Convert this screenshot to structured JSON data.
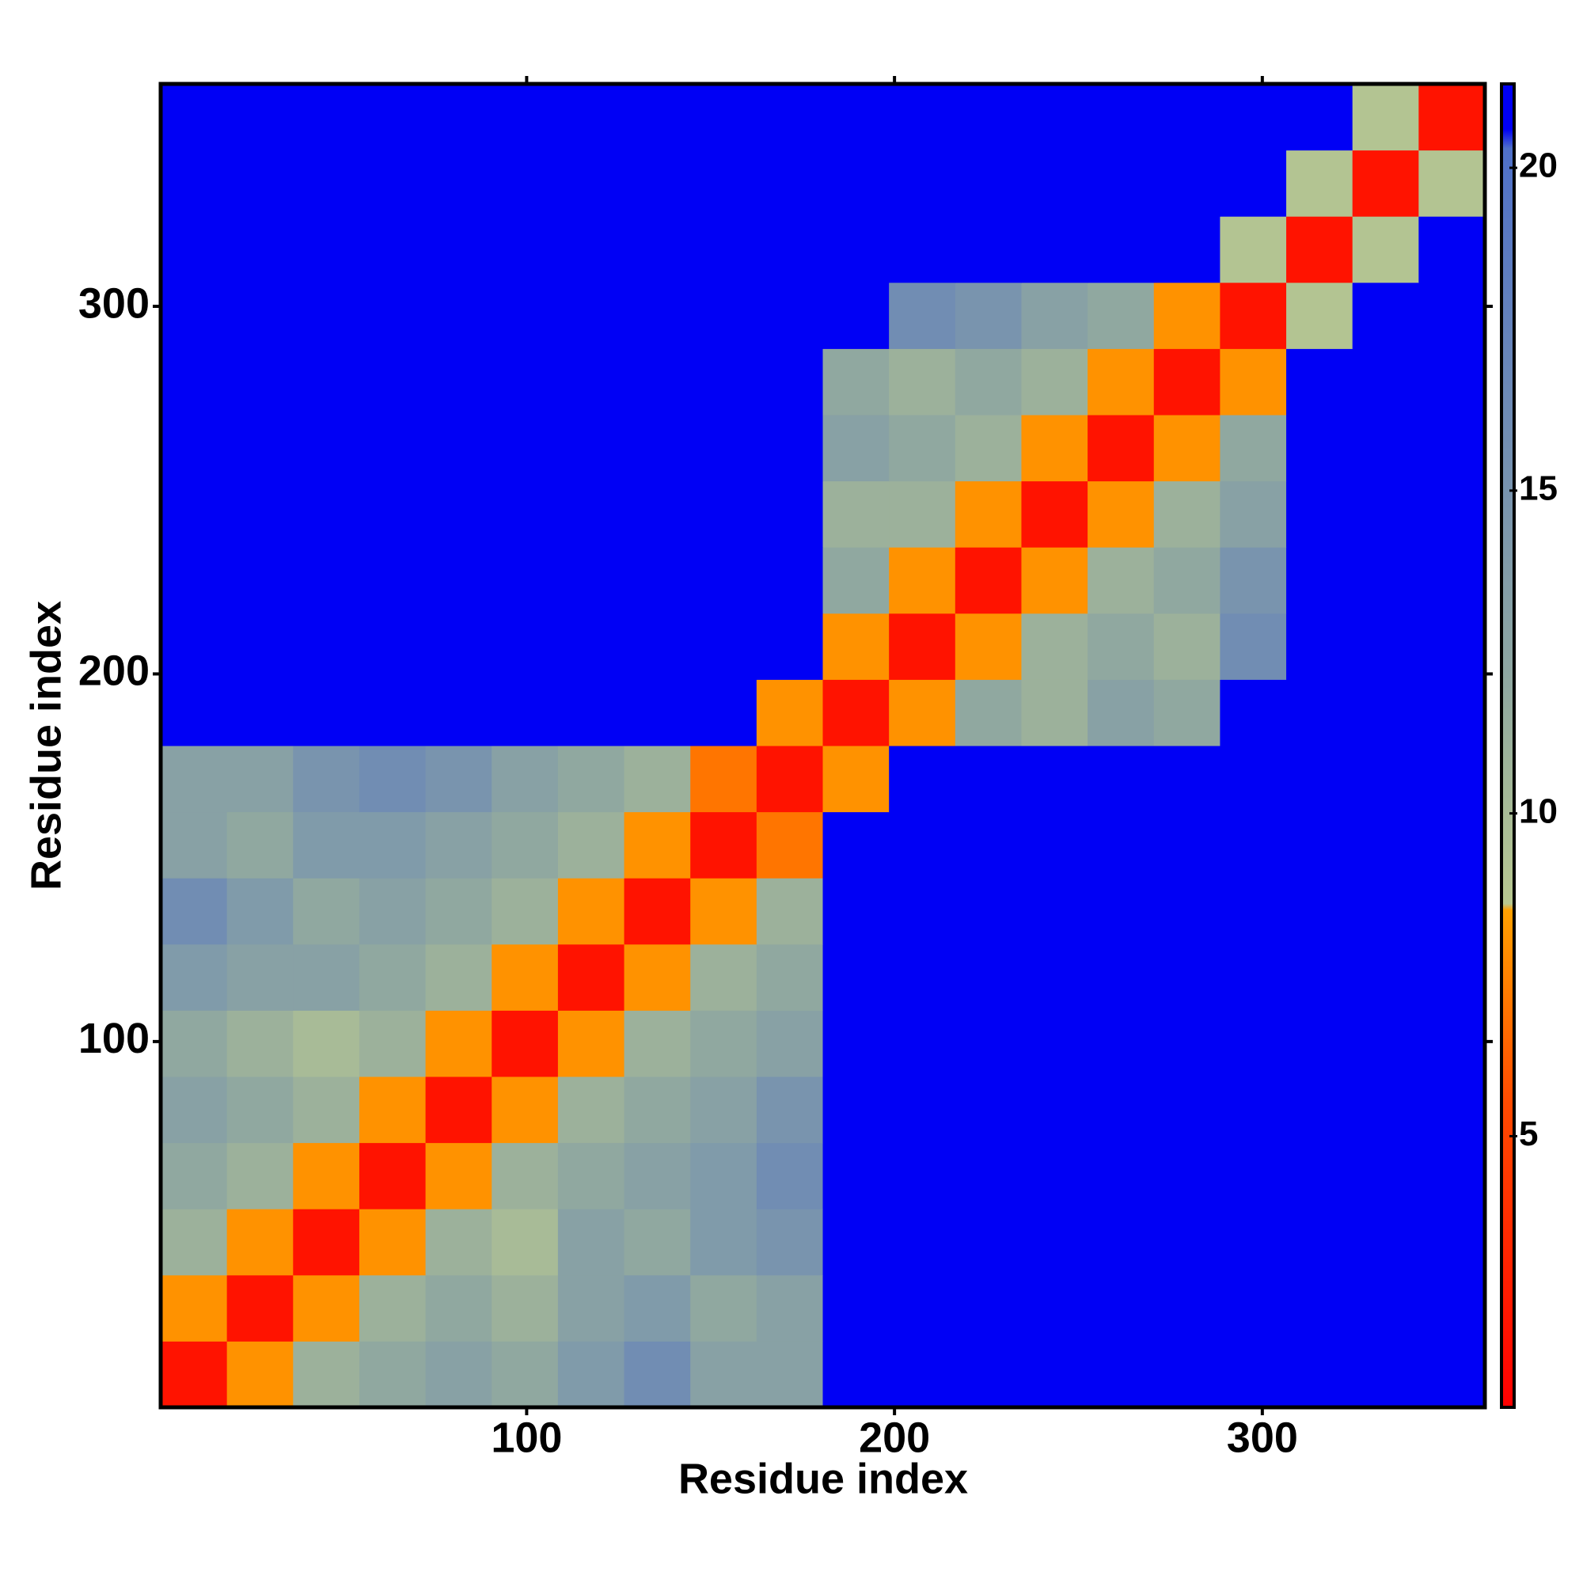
{
  "chart_data": {
    "type": "heatmap",
    "xlabel": "Residue index",
    "ylabel": "Residue index",
    "xlim": [
      0.5,
      360.5
    ],
    "ylim": [
      0.5,
      360.5
    ],
    "xticks": [
      100,
      200,
      300
    ],
    "yticks": [
      100,
      200,
      300
    ],
    "x_bins": [
      0.5,
      18.5,
      36.5,
      54.5,
      72.5,
      90.5,
      108.5,
      126.5,
      144.5,
      162.5,
      180.5,
      198.5,
      216.5,
      234.5,
      252.5,
      270.5,
      288.5,
      306.5,
      324.5,
      342.5,
      360.5
    ],
    "y_bins": [
      0.5,
      18.5,
      36.5,
      54.5,
      72.5,
      90.5,
      108.5,
      126.5,
      144.5,
      162.5,
      180.5,
      198.5,
      216.5,
      234.5,
      252.5,
      270.5,
      288.5,
      306.5,
      324.5,
      342.5,
      360.5
    ],
    "z": [
      [
        2,
        8,
        11,
        12,
        13,
        12,
        14,
        16,
        13,
        13,
        21,
        21,
        21,
        21,
        21,
        21,
        21,
        21,
        21,
        21
      ],
      [
        8,
        2,
        8,
        11,
        12,
        11,
        13,
        14,
        12,
        13,
        21,
        21,
        21,
        21,
        21,
        21,
        21,
        21,
        21,
        21
      ],
      [
        11,
        8,
        2,
        8,
        11,
        10,
        13,
        12,
        14,
        15,
        21,
        21,
        21,
        21,
        21,
        21,
        21,
        21,
        21,
        21
      ],
      [
        12,
        11,
        8,
        2,
        8,
        11,
        12,
        13,
        14,
        16,
        21,
        21,
        21,
        21,
        21,
        21,
        21,
        21,
        21,
        21
      ],
      [
        13,
        12,
        11,
        8,
        2,
        8,
        11,
        12,
        13,
        15,
        21,
        21,
        21,
        21,
        21,
        21,
        21,
        21,
        21,
        21
      ],
      [
        12,
        11,
        10,
        11,
        8,
        2,
        8,
        11,
        12,
        13,
        21,
        21,
        21,
        21,
        21,
        21,
        21,
        21,
        21,
        21
      ],
      [
        14,
        13,
        13,
        12,
        11,
        8,
        2,
        8,
        11,
        12,
        21,
        21,
        21,
        21,
        21,
        21,
        21,
        21,
        21,
        21
      ],
      [
        16,
        14,
        12,
        13,
        12,
        11,
        8,
        2,
        8,
        11,
        21,
        21,
        21,
        21,
        21,
        21,
        21,
        21,
        21,
        21
      ],
      [
        13,
        12,
        14,
        14,
        13,
        12,
        11,
        8,
        2,
        7,
        21,
        21,
        21,
        21,
        21,
        21,
        21,
        21,
        21,
        21
      ],
      [
        13,
        13,
        15,
        16,
        15,
        13,
        12,
        11,
        7,
        2,
        8,
        21,
        21,
        21,
        21,
        21,
        21,
        21,
        21,
        21
      ],
      [
        21,
        21,
        21,
        21,
        21,
        21,
        21,
        21,
        21,
        8,
        2,
        8,
        12,
        11,
        13,
        12,
        21,
        21,
        21,
        21
      ],
      [
        21,
        21,
        21,
        21,
        21,
        21,
        21,
        21,
        21,
        21,
        8,
        2,
        8,
        11,
        12,
        11,
        16,
        21,
        21,
        21
      ],
      [
        21,
        21,
        21,
        21,
        21,
        21,
        21,
        21,
        21,
        21,
        12,
        8,
        2,
        8,
        11,
        12,
        15,
        21,
        21,
        21
      ],
      [
        21,
        21,
        21,
        21,
        21,
        21,
        21,
        21,
        21,
        21,
        11,
        11,
        8,
        2,
        8,
        11,
        13,
        21,
        21,
        21
      ],
      [
        21,
        21,
        21,
        21,
        21,
        21,
        21,
        21,
        21,
        21,
        13,
        12,
        11,
        8,
        2,
        8,
        12,
        21,
        21,
        21
      ],
      [
        21,
        21,
        21,
        21,
        21,
        21,
        21,
        21,
        21,
        21,
        12,
        11,
        12,
        11,
        8,
        2,
        8,
        21,
        21,
        21
      ],
      [
        21,
        21,
        21,
        21,
        21,
        21,
        21,
        21,
        21,
        21,
        21,
        16,
        15,
        13,
        12,
        8,
        2,
        9,
        21,
        21
      ],
      [
        21,
        21,
        21,
        21,
        21,
        21,
        21,
        21,
        21,
        21,
        21,
        21,
        21,
        21,
        21,
        21,
        9,
        2,
        9,
        21
      ],
      [
        21,
        21,
        21,
        21,
        21,
        21,
        21,
        21,
        21,
        21,
        21,
        21,
        21,
        21,
        21,
        21,
        21,
        9,
        2,
        9
      ],
      [
        21,
        21,
        21,
        21,
        21,
        21,
        21,
        21,
        21,
        21,
        21,
        21,
        21,
        21,
        21,
        21,
        21,
        21,
        9,
        2
      ]
    ],
    "zlim": [
      0.8,
      21.3
    ],
    "zticks": [
      5,
      10,
      15,
      20
    ],
    "colorscale": [
      [
        0.8,
        "#ff0000"
      ],
      [
        5.5,
        "#ff4a00"
      ],
      [
        8.5,
        "#ffa000"
      ],
      [
        8.6,
        "#b8c890"
      ],
      [
        12,
        "#90a8a0"
      ],
      [
        20.3,
        "#4f70c8"
      ],
      [
        20.6,
        "#0000f5"
      ],
      [
        21.3,
        "#0000f5"
      ]
    ]
  }
}
